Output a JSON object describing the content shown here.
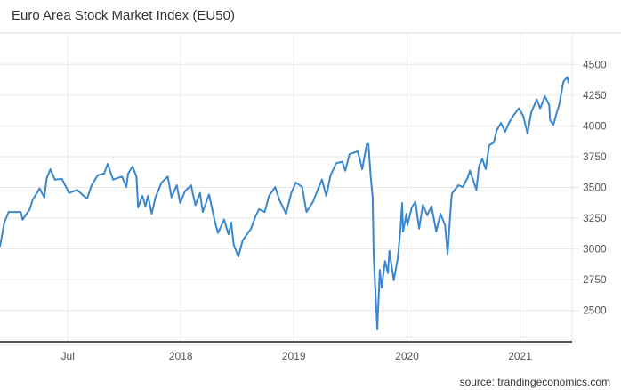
{
  "chart_data": {
    "type": "line",
    "title": "Euro Area Stock Market Index (EU50)",
    "source": "source: trandingeconomics.com",
    "xlabel": "",
    "ylabel": "",
    "xlim": [
      "2016-11-24",
      "2021-12-16"
    ],
    "ylim": [
      2245,
      4755
    ],
    "grid": true,
    "legend": "none",
    "line_color": "#3a87d0",
    "x_ticks": [
      {
        "label": "Jul",
        "date": "2017-07-01"
      },
      {
        "label": "2018",
        "date": "2018-07-01"
      },
      {
        "label": "2019",
        "date": "2019-07-01"
      },
      {
        "label": "2020",
        "date": "2020-07-01"
      },
      {
        "label": "2021",
        "date": "2021-07-01"
      }
    ],
    "y_ticks": [
      2500,
      2750,
      3000,
      3250,
      3500,
      3750,
      4000,
      4250,
      4500
    ],
    "series": [
      {
        "points": [
          [
            "2016-11-24",
            3021
          ],
          [
            "2016-12-08",
            3215
          ],
          [
            "2016-12-22",
            3300
          ],
          [
            "2017-01-30",
            3300
          ],
          [
            "2017-02-05",
            3238
          ],
          [
            "2017-02-28",
            3323
          ],
          [
            "2017-03-09",
            3395
          ],
          [
            "2017-04-01",
            3491
          ],
          [
            "2017-04-16",
            3419
          ],
          [
            "2017-04-24",
            3576
          ],
          [
            "2017-05-06",
            3648
          ],
          [
            "2017-05-20",
            3564
          ],
          [
            "2017-06-12",
            3570
          ],
          [
            "2017-07-05",
            3455
          ],
          [
            "2017-07-31",
            3480
          ],
          [
            "2017-09-01",
            3408
          ],
          [
            "2017-09-16",
            3518
          ],
          [
            "2017-10-06",
            3600
          ],
          [
            "2017-10-26",
            3612
          ],
          [
            "2017-11-07",
            3692
          ],
          [
            "2017-11-24",
            3564
          ],
          [
            "2017-12-23",
            3588
          ],
          [
            "2018-01-06",
            3503
          ],
          [
            "2018-01-12",
            3612
          ],
          [
            "2018-01-26",
            3670
          ],
          [
            "2018-02-08",
            3588
          ],
          [
            "2018-02-13",
            3337
          ],
          [
            "2018-02-27",
            3431
          ],
          [
            "2018-03-09",
            3347
          ],
          [
            "2018-03-17",
            3431
          ],
          [
            "2018-03-29",
            3286
          ],
          [
            "2018-04-10",
            3419
          ],
          [
            "2018-04-30",
            3540
          ],
          [
            "2018-05-20",
            3588
          ],
          [
            "2018-06-01",
            3419
          ],
          [
            "2018-06-18",
            3518
          ],
          [
            "2018-06-29",
            3373
          ],
          [
            "2018-07-14",
            3467
          ],
          [
            "2018-08-03",
            3518
          ],
          [
            "2018-08-17",
            3355
          ],
          [
            "2018-09-01",
            3455
          ],
          [
            "2018-09-10",
            3300
          ],
          [
            "2018-09-30",
            3443
          ],
          [
            "2018-10-20",
            3215
          ],
          [
            "2018-10-29",
            3130
          ],
          [
            "2018-11-18",
            3238
          ],
          [
            "2018-12-02",
            3119
          ],
          [
            "2018-12-11",
            3215
          ],
          [
            "2018-12-19",
            3034
          ],
          [
            "2019-01-03",
            2939
          ],
          [
            "2019-01-17",
            3070
          ],
          [
            "2019-02-13",
            3166
          ],
          [
            "2019-02-27",
            3264
          ],
          [
            "2019-03-11",
            3323
          ],
          [
            "2019-03-29",
            3300
          ],
          [
            "2019-04-12",
            3431
          ],
          [
            "2019-05-02",
            3503
          ],
          [
            "2019-05-16",
            3395
          ],
          [
            "2019-06-06",
            3286
          ],
          [
            "2019-06-23",
            3455
          ],
          [
            "2019-07-08",
            3540
          ],
          [
            "2019-07-28",
            3503
          ],
          [
            "2019-08-11",
            3300
          ],
          [
            "2019-09-01",
            3383
          ],
          [
            "2019-09-16",
            3480
          ],
          [
            "2019-09-30",
            3564
          ],
          [
            "2019-10-14",
            3431
          ],
          [
            "2019-10-28",
            3600
          ],
          [
            "2019-11-15",
            3697
          ],
          [
            "2019-12-05",
            3709
          ],
          [
            "2019-12-14",
            3636
          ],
          [
            "2019-12-28",
            3770
          ],
          [
            "2020-01-24",
            3793
          ],
          [
            "2020-02-07",
            3648
          ],
          [
            "2020-02-22",
            3853
          ],
          [
            "2020-02-27",
            3853
          ],
          [
            "2020-03-06",
            3576
          ],
          [
            "2020-03-12",
            3419
          ],
          [
            "2020-03-15",
            2949
          ],
          [
            "2020-03-24",
            2490
          ],
          [
            "2020-03-27",
            2346
          ],
          [
            "2020-04-04",
            2830
          ],
          [
            "2020-04-10",
            2684
          ],
          [
            "2020-04-21",
            2902
          ],
          [
            "2020-04-30",
            2804
          ],
          [
            "2020-05-05",
            2985
          ],
          [
            "2020-05-19",
            2745
          ],
          [
            "2020-06-01",
            2925
          ],
          [
            "2020-06-09",
            3142
          ],
          [
            "2020-06-15",
            3373
          ],
          [
            "2020-06-18",
            3142
          ],
          [
            "2020-06-29",
            3286
          ],
          [
            "2020-07-02",
            3192
          ],
          [
            "2020-07-16",
            3337
          ],
          [
            "2020-07-28",
            3383
          ],
          [
            "2020-08-09",
            3166
          ],
          [
            "2020-08-21",
            3359
          ],
          [
            "2020-09-04",
            3274
          ],
          [
            "2020-09-18",
            3347
          ],
          [
            "2020-10-03",
            3142
          ],
          [
            "2020-10-17",
            3286
          ],
          [
            "2020-11-01",
            3192
          ],
          [
            "2020-11-09",
            2960
          ],
          [
            "2020-11-21",
            3408
          ],
          [
            "2020-11-24",
            3455
          ],
          [
            "2020-12-14",
            3518
          ],
          [
            "2020-12-28",
            3503
          ],
          [
            "2021-01-12",
            3576
          ],
          [
            "2021-01-20",
            3636
          ],
          [
            "2021-02-10",
            3480
          ],
          [
            "2021-02-18",
            3672
          ],
          [
            "2021-03-01",
            3733
          ],
          [
            "2021-03-12",
            3648
          ],
          [
            "2021-03-23",
            3842
          ],
          [
            "2021-04-07",
            3865
          ],
          [
            "2021-04-16",
            3961
          ],
          [
            "2021-04-30",
            4024
          ],
          [
            "2021-05-14",
            3952
          ],
          [
            "2021-05-26",
            4024
          ],
          [
            "2021-06-09",
            4082
          ],
          [
            "2021-06-27",
            4143
          ],
          [
            "2021-07-11",
            4082
          ],
          [
            "2021-07-25",
            3938
          ],
          [
            "2021-08-06",
            4109
          ],
          [
            "2021-08-24",
            4215
          ],
          [
            "2021-09-04",
            4143
          ],
          [
            "2021-09-19",
            4241
          ],
          [
            "2021-10-03",
            4169
          ],
          [
            "2021-10-06",
            4046
          ],
          [
            "2021-10-17",
            4010
          ],
          [
            "2021-10-26",
            4096
          ],
          [
            "2021-11-04",
            4169
          ],
          [
            "2021-11-18",
            4360
          ],
          [
            "2021-11-30",
            4396
          ],
          [
            "2021-12-05",
            4348
          ]
        ]
      }
    ]
  }
}
